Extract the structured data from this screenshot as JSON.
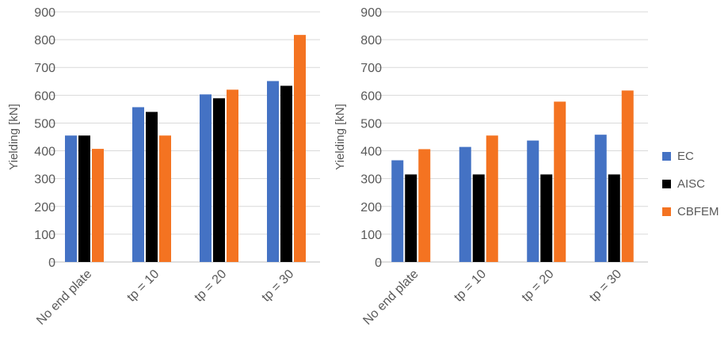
{
  "chart_data": [
    {
      "type": "bar",
      "categories": [
        "No end plate",
        "tp = 10",
        "tp = 20",
        "tp = 30"
      ],
      "series": [
        {
          "name": "EC",
          "color": "#4472C4",
          "values": [
            455,
            557,
            603,
            651
          ]
        },
        {
          "name": "AISC",
          "color": "#000000",
          "values": [
            455,
            540,
            589,
            634
          ]
        },
        {
          "name": "CBFEM",
          "color": "#F47321",
          "values": [
            407,
            455,
            620,
            817
          ]
        }
      ],
      "ylabel": "Yielding [kN]",
      "ylim": [
        0,
        900
      ],
      "yticks": [
        0,
        100,
        200,
        300,
        400,
        500,
        600,
        700,
        800,
        900
      ],
      "grid": true
    },
    {
      "type": "bar",
      "categories": [
        "No end plate",
        "tp = 10",
        "tp = 20",
        "tp = 30"
      ],
      "series": [
        {
          "name": "EC",
          "color": "#4472C4",
          "values": [
            366,
            414,
            437,
            458
          ]
        },
        {
          "name": "AISC",
          "color": "#000000",
          "values": [
            315,
            315,
            315,
            315
          ]
        },
        {
          "name": "CBFEM",
          "color": "#F47321",
          "values": [
            406,
            455,
            577,
            617
          ]
        }
      ],
      "ylabel": "Yielding [kN]",
      "ylim": [
        0,
        900
      ],
      "yticks": [
        0,
        100,
        200,
        300,
        400,
        500,
        600,
        700,
        800,
        900
      ],
      "grid": true
    }
  ],
  "legend": {
    "position": "right",
    "items": [
      {
        "label": "EC",
        "color": "#4472C4"
      },
      {
        "label": "AISC",
        "color": "#000000"
      },
      {
        "label": "CBFEM",
        "color": "#F47321"
      }
    ]
  }
}
